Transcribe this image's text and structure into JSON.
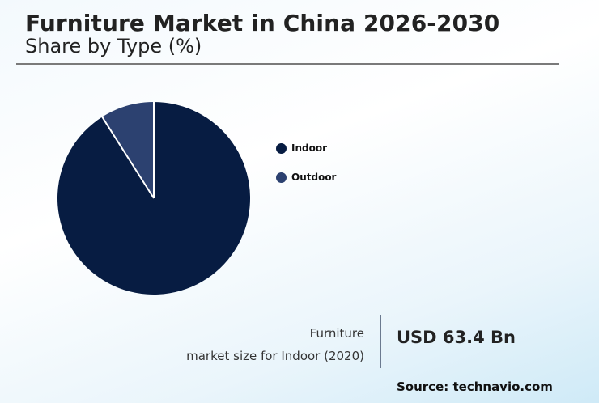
{
  "header": {
    "title": "Furniture Market in China 2026-2030",
    "subtitle": "Share by Type (%)"
  },
  "legend": {
    "items": [
      {
        "label": "Indoor",
        "color": "#071c42"
      },
      {
        "label": "Outdoor",
        "color": "#2c4170"
      }
    ]
  },
  "kpi": {
    "label_line1": "Furniture",
    "label_line2": "market size for Indoor (2020)",
    "value": "USD 63.4 Bn"
  },
  "footer": {
    "source": "Source: technavio.com"
  },
  "colors": {
    "indoor": "#071c42",
    "outdoor": "#2c4170",
    "separator": "#ffffff"
  },
  "chart_data": {
    "type": "pie",
    "title": "Furniture Market in China 2026-2030",
    "subtitle": "Share by Type (%)",
    "categories": [
      "Indoor",
      "Outdoor"
    ],
    "values": [
      91,
      9
    ],
    "colors": [
      "#071c42",
      "#2c4170"
    ],
    "start_angle": "12 o'clock",
    "direction": "clockwise for Indoor",
    "legend_position": "right",
    "annotation": {
      "label": "Furniture market size for Indoor (2020)",
      "value": "USD 63.4 Bn"
    },
    "source": "technavio.com"
  }
}
